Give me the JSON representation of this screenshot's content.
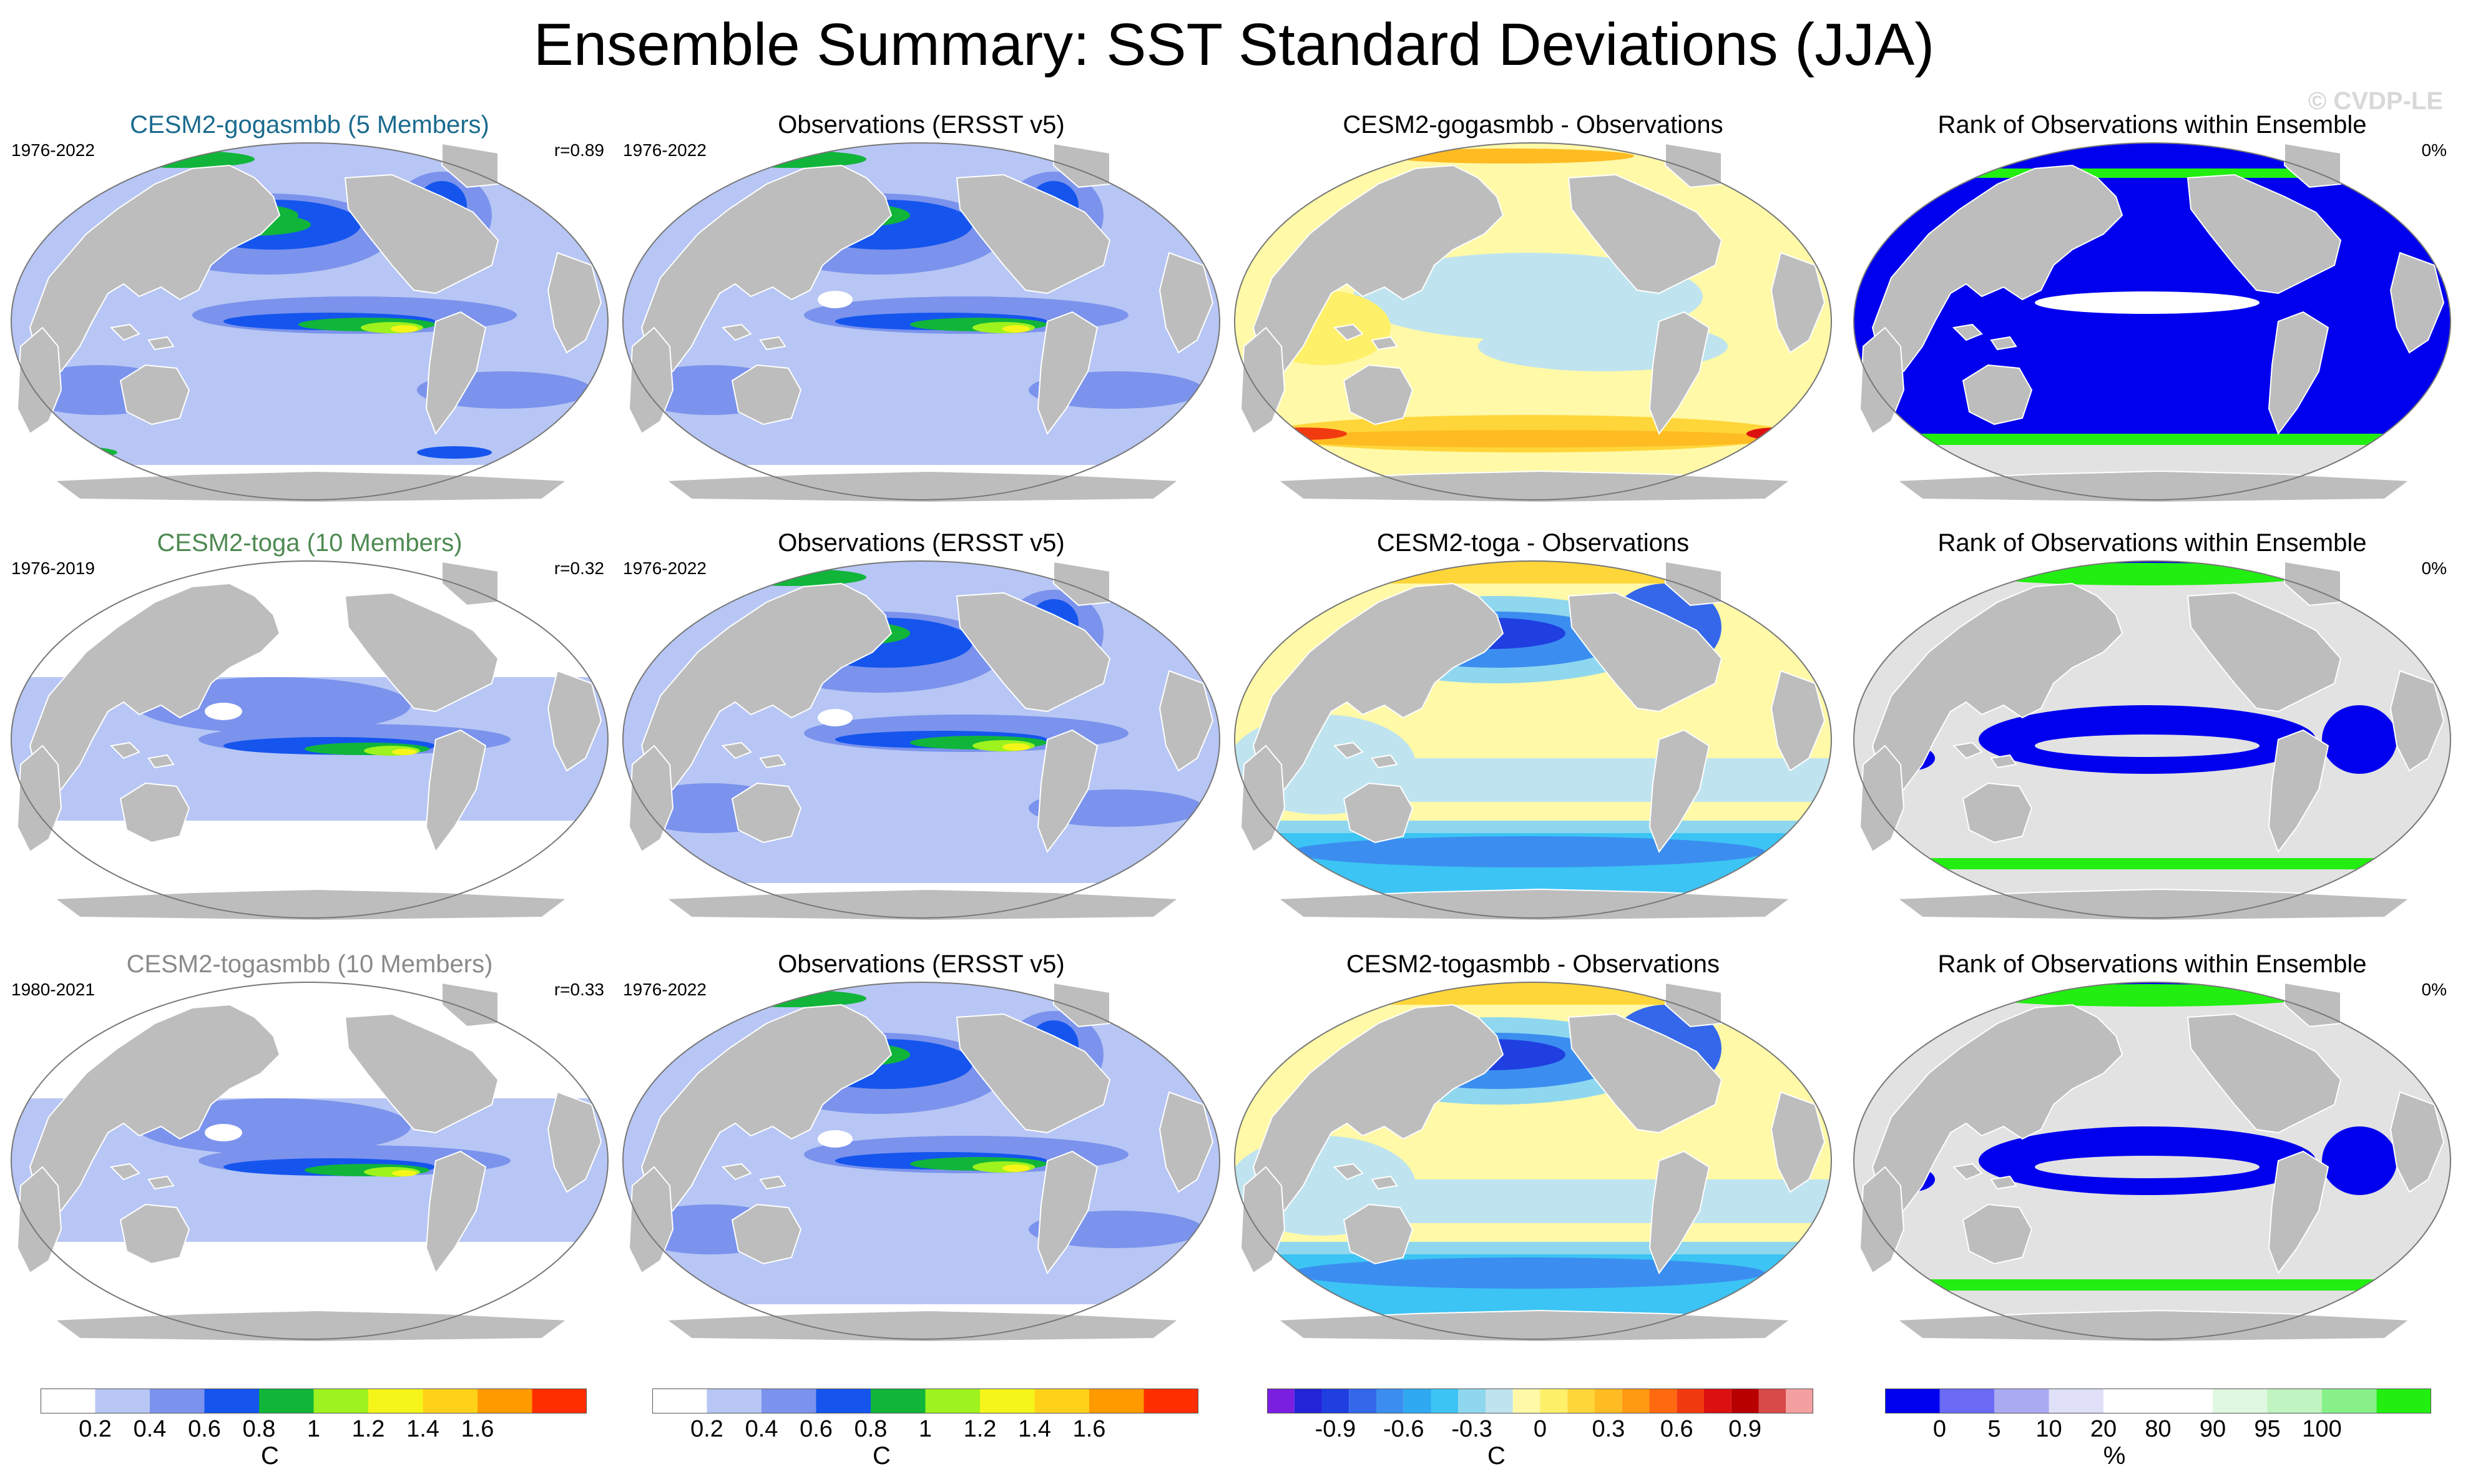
{
  "title": "Ensemble Summary: SST Standard Deviations (JJA)",
  "watermark": "© CVDP-LE",
  "colors": {
    "land": "#bdbdbd",
    "coast": "#ffffff",
    "ocean_sd_low": "#ffffff",
    "ocean_sd_1": "#b7c6f4",
    "ocean_sd_2": "#7b93ec",
    "ocean_sd_3": "#1555ee",
    "ocean_sd_4": "#10b53a",
    "ocean_sd_5": "#9ef21d",
    "ocean_sd_6": "#f5f51a",
    "ocean_sd_7": "#ff9a00",
    "rank_low": "#0000ee",
    "rank_high": "#22ee11",
    "rank_mid": "#e2e2e2"
  },
  "rows": [
    {
      "model": {
        "title": "CESM2-gogasmbb (5 Members)",
        "title_color": "#1b6b8f",
        "years": "1976-2022",
        "corr": "r=0.89",
        "style": "sd_model_a"
      },
      "obs": {
        "title": "Observations (ERSST v5)",
        "years": "1976-2022",
        "style": "sd_obs"
      },
      "diff": {
        "title": "CESM2-gogasmbb - Observations",
        "style": "diff_warm"
      },
      "rank": {
        "title": "Rank of Observations within Ensemble",
        "pct": "0%",
        "style": "rank_blue"
      }
    },
    {
      "model": {
        "title": "CESM2-toga (10 Members)",
        "title_color": "#4e8a52",
        "years": "1976-2019",
        "corr": "r=0.32",
        "style": "sd_model_b"
      },
      "obs": {
        "title": "Observations (ERSST v5)",
        "years": "1976-2022",
        "style": "sd_obs"
      },
      "diff": {
        "title": "CESM2-toga - Observations",
        "style": "diff_cool"
      },
      "rank": {
        "title": "Rank of Observations within Ensemble",
        "pct": "0%",
        "style": "rank_mixed"
      }
    },
    {
      "model": {
        "title": "CESM2-togasmbb (10 Members)",
        "title_color": "#8a8a8a",
        "years": "1980-2021",
        "corr": "r=0.33",
        "style": "sd_model_b"
      },
      "obs": {
        "title": "Observations (ERSST v5)",
        "years": "1976-2022",
        "style": "sd_obs"
      },
      "diff": {
        "title": "CESM2-togasmbb - Observations",
        "style": "diff_cool"
      },
      "rank": {
        "title": "Rank of Observations within Ensemble",
        "pct": "0%",
        "style": "rank_mixed"
      }
    }
  ],
  "colorbars": [
    {
      "unit": "C",
      "colors": [
        "#ffffff",
        "#b7c6f4",
        "#7b93ec",
        "#1555ee",
        "#10b53a",
        "#9ef21d",
        "#f5f51a",
        "#ffd21a",
        "#ff9a00",
        "#ff2e00"
      ],
      "labels": [
        "0.2",
        "0.4",
        "0.6",
        "0.8",
        "1",
        "1.2",
        "1.4",
        "1.6"
      ]
    },
    {
      "unit": "C",
      "colors": [
        "#ffffff",
        "#b7c6f4",
        "#7b93ec",
        "#1555ee",
        "#10b53a",
        "#9ef21d",
        "#f5f51a",
        "#ffd21a",
        "#ff9a00",
        "#ff2e00"
      ],
      "labels": [
        "0.2",
        "0.4",
        "0.6",
        "0.8",
        "1",
        "1.2",
        "1.4",
        "1.6"
      ]
    },
    {
      "unit": "C",
      "colors": [
        "#7a1fdf",
        "#2323d8",
        "#1f3fe0",
        "#3467ea",
        "#3b8ef0",
        "#2fa9f2",
        "#3cc4f4",
        "#8fd7ee",
        "#bfe4f0",
        "#fff9a8",
        "#fff06a",
        "#ffd63a",
        "#ffbb22",
        "#ff9a12",
        "#ff6a10",
        "#f23a10",
        "#dd1010",
        "#b80000",
        "#d84a4a",
        "#f5a0a0"
      ],
      "labels": [
        "-0.9",
        "-0.6",
        "-0.3",
        "0",
        "0.3",
        "0.6",
        "0.9"
      ]
    },
    {
      "unit": "%",
      "colors": [
        "#0000ee",
        "#6a6af4",
        "#aaaaf2",
        "#e0e0f8",
        "#ffffff",
        "#ffffff",
        "#e0f8e0",
        "#c0f4c0",
        "#88f088",
        "#22ee11"
      ],
      "labels": [
        "0",
        "5",
        "10",
        "20",
        "80",
        "90",
        "95",
        "100"
      ]
    }
  ]
}
